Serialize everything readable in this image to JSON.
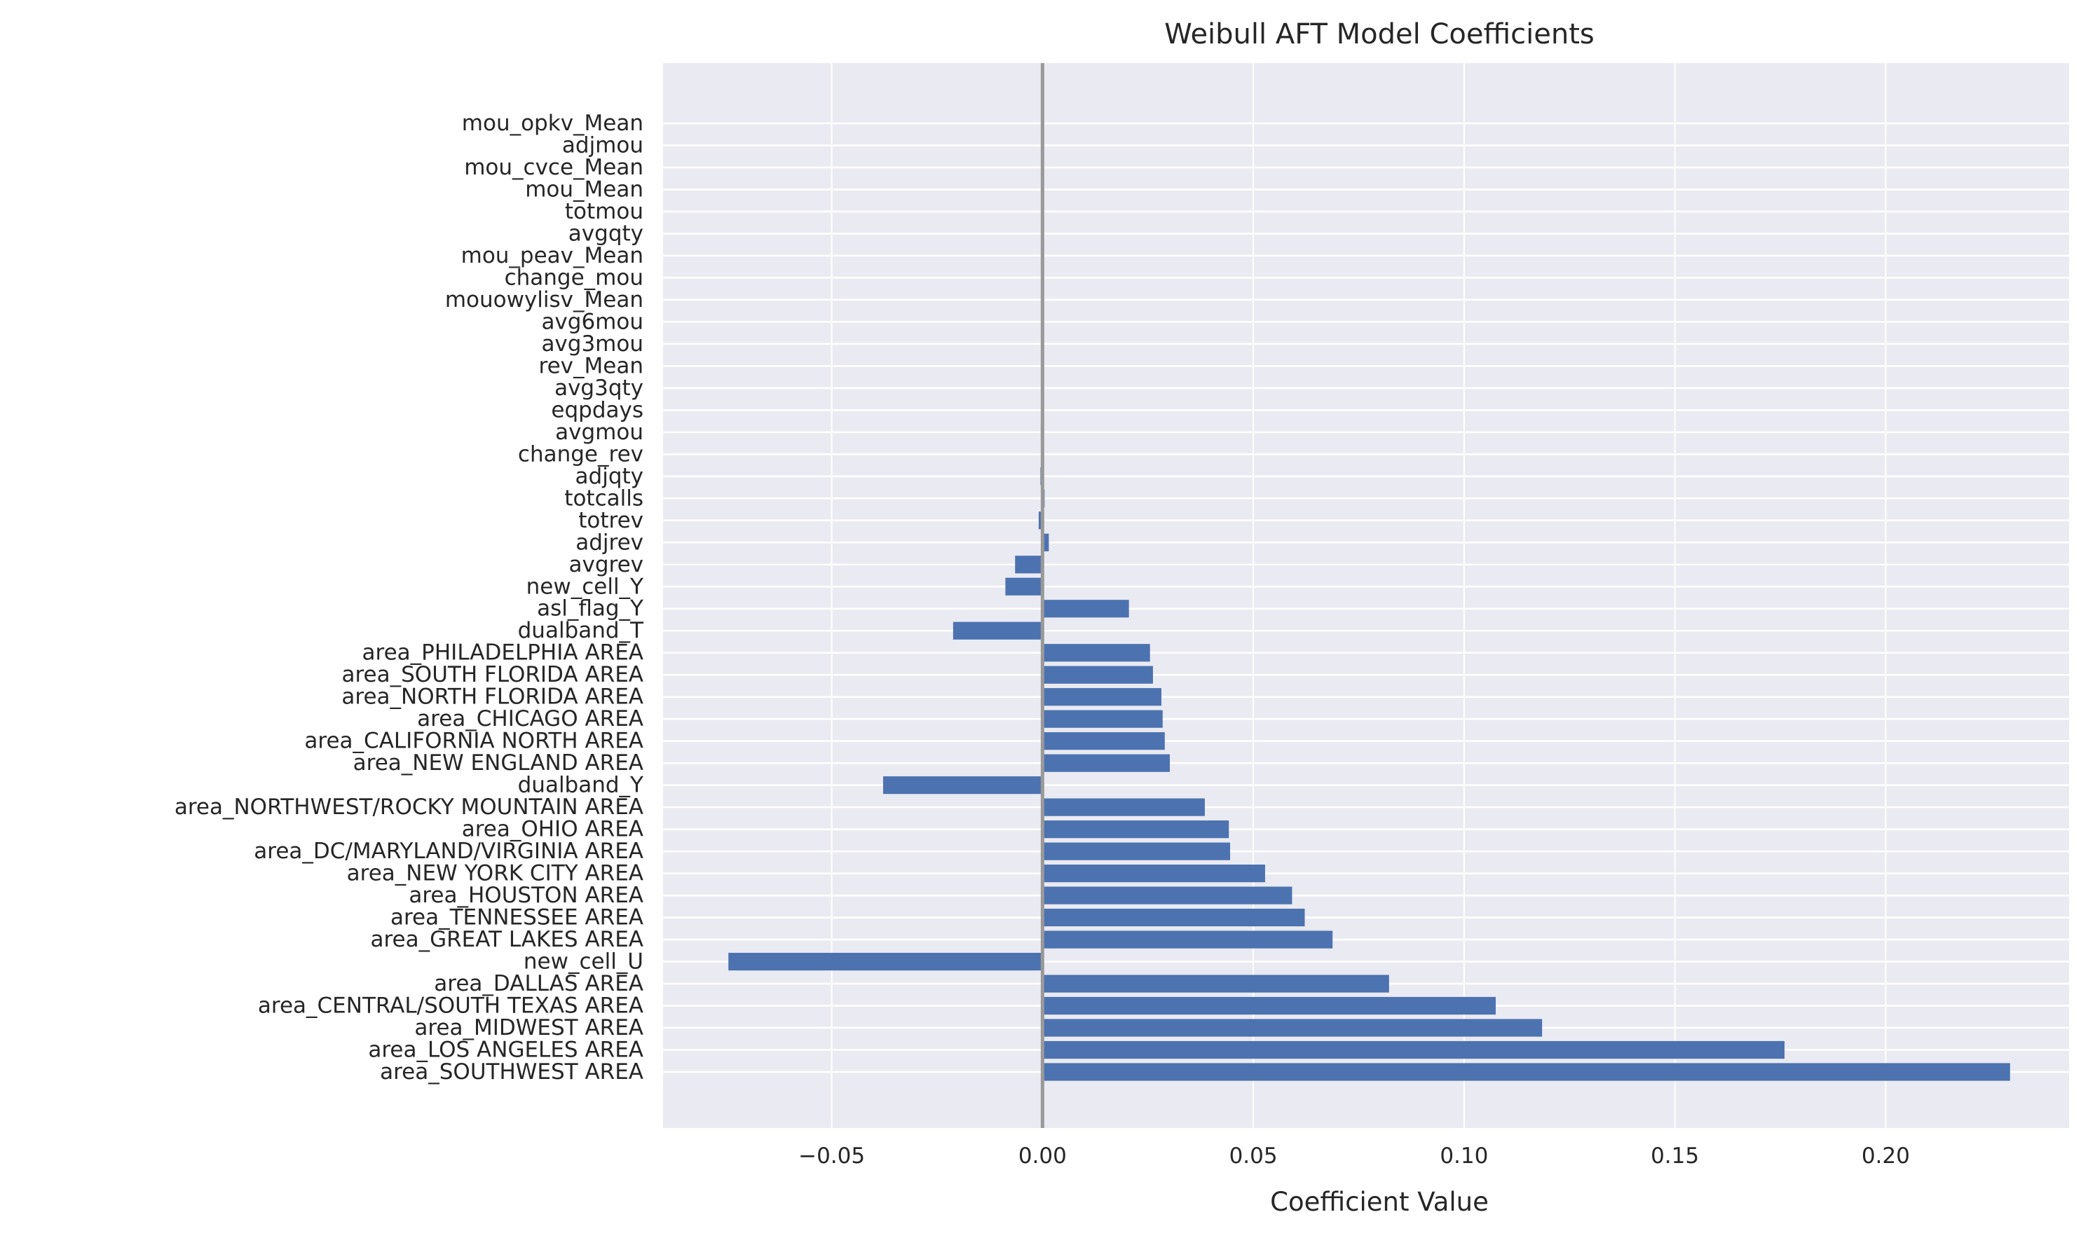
{
  "chart_data": {
    "type": "bar",
    "orientation": "horizontal",
    "title": "Weibull AFT Model Coefficients",
    "xlabel": "Coefficient Value",
    "ylabel": "",
    "xlim": [
      -0.09,
      0.2435
    ],
    "xticks": [
      -0.05,
      0.0,
      0.05,
      0.1,
      0.15,
      0.2
    ],
    "xtick_labels": [
      "−0.05",
      "0.00",
      "0.05",
      "0.10",
      "0.15",
      "0.20"
    ],
    "grid": true,
    "reference_line_x": 0.0,
    "bar_color": "#4c72b0",
    "background_color": "#eaeaf2",
    "categories": [
      "area_SOUTHWEST AREA",
      "area_LOS ANGELES AREA",
      "area_MIDWEST AREA",
      "area_CENTRAL/SOUTH TEXAS AREA",
      "area_DALLAS AREA",
      "new_cell_U",
      "area_GREAT LAKES AREA",
      "area_TENNESSEE AREA",
      "area_HOUSTON AREA",
      "area_NEW YORK CITY AREA",
      "area_DC/MARYLAND/VIRGINIA AREA",
      "area_OHIO AREA",
      "area_NORTHWEST/ROCKY MOUNTAIN AREA",
      "dualband_Y",
      "area_NEW ENGLAND AREA",
      "area_CALIFORNIA NORTH AREA",
      "area_CHICAGO AREA",
      "area_NORTH FLORIDA AREA",
      "area_SOUTH FLORIDA AREA",
      "area_PHILADELPHIA AREA",
      "dualband_T",
      "asl_flag_Y",
      "new_cell_Y",
      "avgrev",
      "adjrev",
      "totrev",
      "totcalls",
      "adjqty",
      "change_rev",
      "avgmou",
      "eqpdays",
      "avg3qty",
      "rev_Mean",
      "avg3mou",
      "avg6mou",
      "mouowylisv_Mean",
      "change_mou",
      "mou_peav_Mean",
      "avgqty",
      "totmou",
      "mou_Mean",
      "mou_cvce_Mean",
      "adjmou",
      "mou_opkv_Mean"
    ],
    "values": [
      0.2295,
      0.176,
      0.1185,
      0.1075,
      0.0822,
      -0.0745,
      0.0688,
      0.0622,
      0.0592,
      0.0528,
      0.0445,
      0.0442,
      0.0385,
      -0.0378,
      0.0302,
      0.029,
      0.0285,
      0.0282,
      0.0262,
      0.0255,
      -0.0212,
      0.0205,
      -0.0088,
      -0.0065,
      0.0015,
      -0.0009,
      0.0005,
      -0.0005,
      0.0003,
      -0.0004,
      0.0002,
      -0.0002,
      -0.0002,
      0.0001,
      0.0001,
      0.0001,
      5e-05,
      3e-05,
      3e-05,
      2e-05,
      2e-05,
      2e-05,
      1e-05,
      1e-05
    ]
  }
}
